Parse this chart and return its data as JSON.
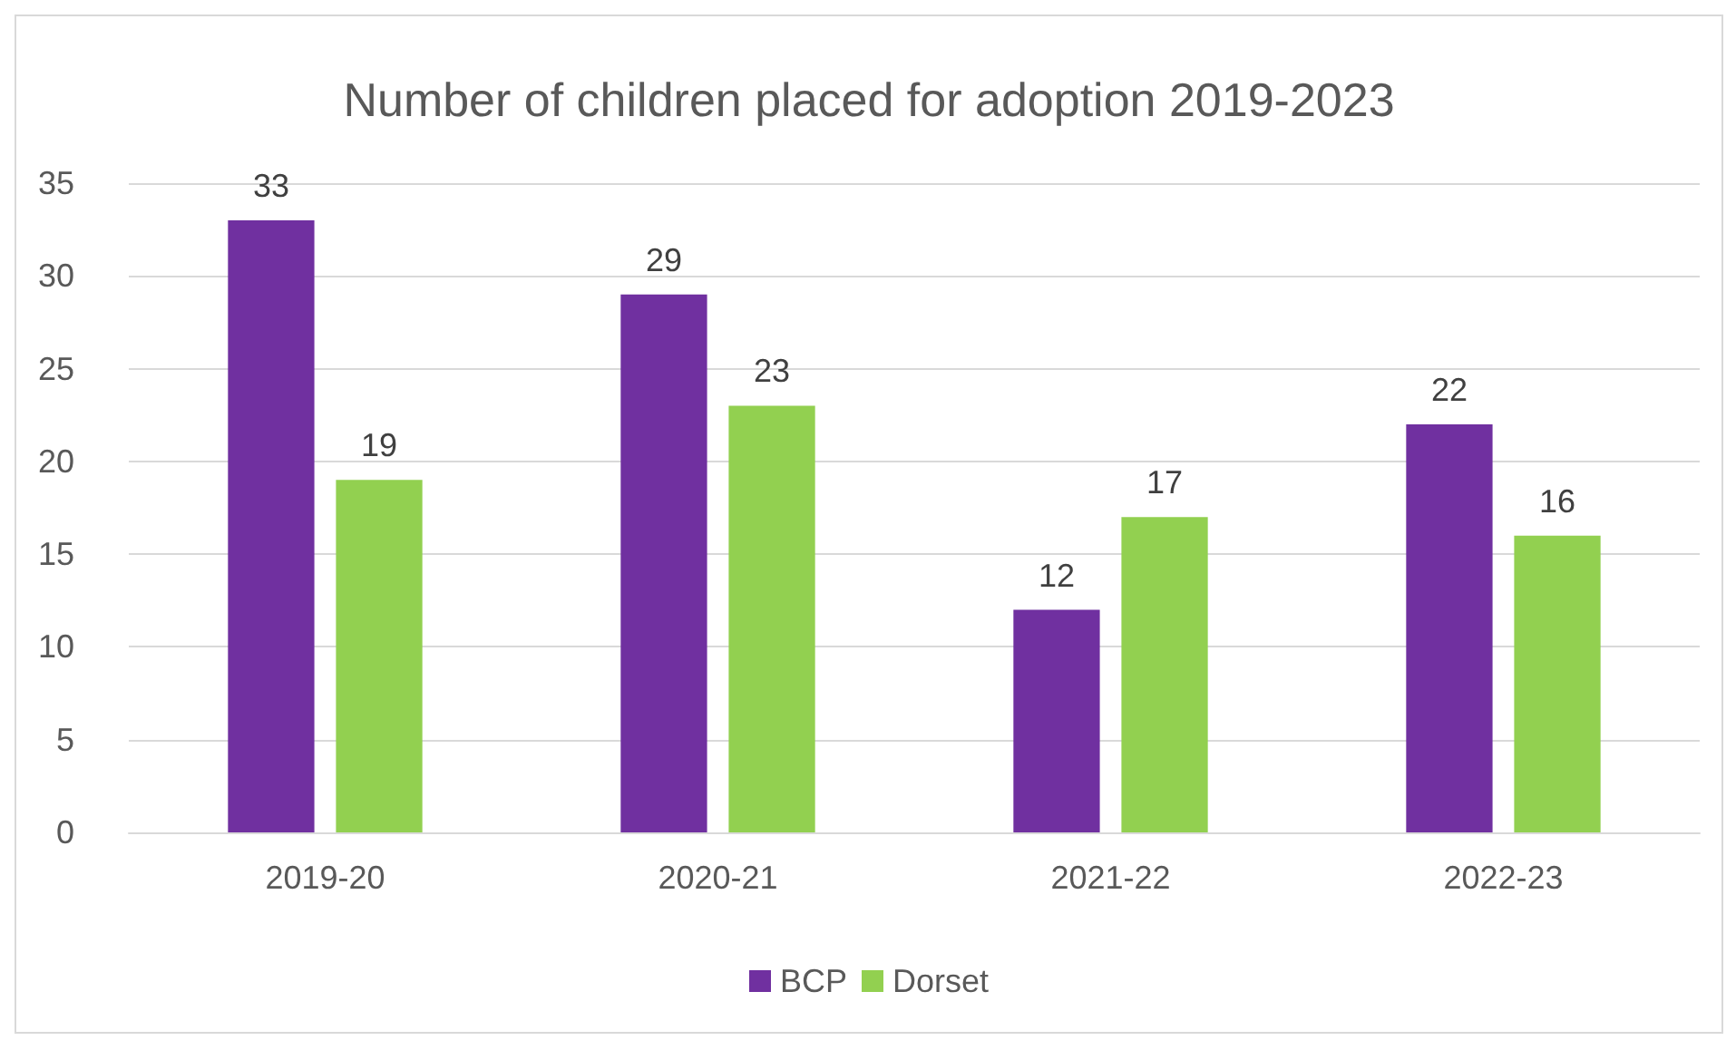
{
  "chart_data": {
    "type": "bar",
    "title": "Number of children placed for adoption 2019-2023",
    "categories": [
      "2019-20",
      "2020-21",
      "2021-22",
      "2022-23"
    ],
    "series": [
      {
        "name": "BCP",
        "color": "#7030a0",
        "values": [
          33,
          29,
          12,
          22
        ]
      },
      {
        "name": "Dorset",
        "color": "#92d050",
        "values": [
          19,
          23,
          17,
          16
        ]
      }
    ],
    "ylim": [
      0,
      35
    ],
    "yticks": [
      0,
      5,
      10,
      15,
      20,
      25,
      30,
      35
    ],
    "grid": "y",
    "legend": "bottom",
    "data_labels": true
  }
}
